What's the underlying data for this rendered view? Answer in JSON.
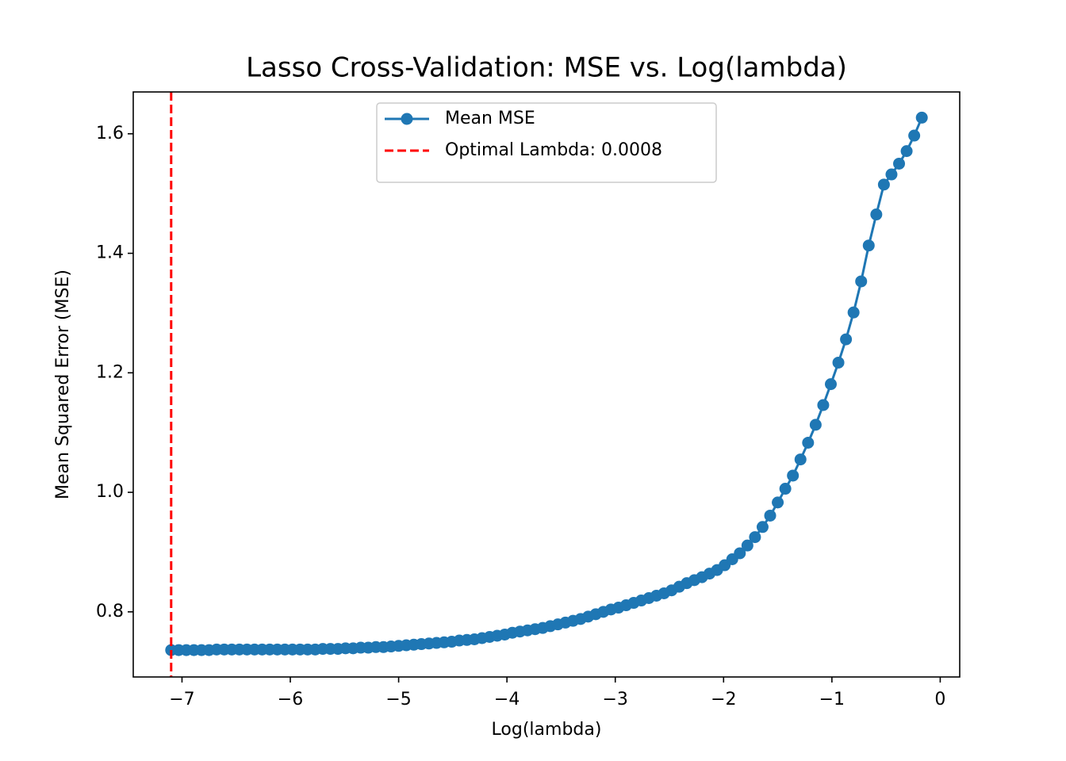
{
  "chart_data": {
    "type": "line",
    "title": "Lasso Cross-Validation: MSE vs. Log(lambda)",
    "xlabel": "Log(lambda)",
    "ylabel": "Mean Squared Error (MSE)",
    "x": [
      -7.1,
      -7.03,
      -6.96,
      -6.89,
      -6.82,
      -6.75,
      -6.68,
      -6.61,
      -6.54,
      -6.47,
      -6.4,
      -6.33,
      -6.26,
      -6.19,
      -6.12,
      -6.05,
      -5.98,
      -5.91,
      -5.84,
      -5.77,
      -5.7,
      -5.63,
      -5.56,
      -5.49,
      -5.42,
      -5.35,
      -5.28,
      -5.21,
      -5.14,
      -5.07,
      -5.0,
      -4.93,
      -4.86,
      -4.79,
      -4.72,
      -4.65,
      -4.58,
      -4.51,
      -4.44,
      -4.37,
      -4.3,
      -4.23,
      -4.16,
      -4.09,
      -4.02,
      -3.95,
      -3.88,
      -3.81,
      -3.74,
      -3.67,
      -3.6,
      -3.53,
      -3.46,
      -3.39,
      -3.32,
      -3.25,
      -3.18,
      -3.11,
      -3.04,
      -2.97,
      -2.9,
      -2.83,
      -2.76,
      -2.69,
      -2.62,
      -2.55,
      -2.48,
      -2.41,
      -2.34,
      -2.27,
      -2.2,
      -2.13,
      -2.06,
      -1.99,
      -1.92,
      -1.85,
      -1.78,
      -1.71,
      -1.64,
      -1.57,
      -1.5,
      -1.43,
      -1.36,
      -1.29,
      -1.22,
      -1.15,
      -1.08,
      -1.01,
      -0.94,
      -0.87,
      -0.8,
      -0.73,
      -0.66,
      -0.59,
      -0.52,
      -0.45,
      -0.38,
      -0.31,
      -0.24,
      -0.17
    ],
    "series": [
      {
        "name": "Mean MSE",
        "color": "#1f77b4",
        "values": [
          0.736,
          0.736,
          0.736,
          0.736,
          0.736,
          0.736,
          0.737,
          0.737,
          0.737,
          0.737,
          0.737,
          0.737,
          0.737,
          0.737,
          0.737,
          0.737,
          0.737,
          0.737,
          0.737,
          0.737,
          0.738,
          0.738,
          0.738,
          0.739,
          0.739,
          0.74,
          0.74,
          0.741,
          0.741,
          0.742,
          0.743,
          0.744,
          0.745,
          0.746,
          0.747,
          0.748,
          0.749,
          0.75,
          0.752,
          0.753,
          0.754,
          0.756,
          0.758,
          0.76,
          0.762,
          0.765,
          0.767,
          0.769,
          0.771,
          0.773,
          0.776,
          0.779,
          0.782,
          0.785,
          0.788,
          0.792,
          0.796,
          0.8,
          0.804,
          0.807,
          0.811,
          0.815,
          0.819,
          0.823,
          0.827,
          0.831,
          0.836,
          0.842,
          0.848,
          0.853,
          0.858,
          0.864,
          0.87,
          0.878,
          0.888,
          0.898,
          0.911,
          0.925,
          0.942,
          0.961,
          0.983,
          1.006,
          1.028,
          1.055,
          1.083,
          1.113,
          1.146,
          1.181,
          1.217,
          1.256,
          1.301,
          1.353,
          1.413,
          1.465,
          1.515,
          1.532,
          1.55,
          1.571,
          1.597,
          1.627
        ]
      }
    ],
    "vline": {
      "x": -7.1,
      "label": "Optimal Lambda: 0.0008",
      "color": "#ff0000"
    },
    "xlim": [
      -7.45,
      0.18
    ],
    "ylim": [
      0.691,
      1.67
    ],
    "xticks": [
      {
        "value": -7,
        "label": "−7"
      },
      {
        "value": -6,
        "label": "−6"
      },
      {
        "value": -5,
        "label": "−5"
      },
      {
        "value": -4,
        "label": "−4"
      },
      {
        "value": -3,
        "label": "−3"
      },
      {
        "value": -2,
        "label": "−2"
      },
      {
        "value": -1,
        "label": "−1"
      },
      0
    ],
    "yticks": [
      0.8,
      {
        "value": 1,
        "label": "1.0"
      },
      1.2,
      1.4,
      1.6
    ],
    "legend": "upper center"
  }
}
